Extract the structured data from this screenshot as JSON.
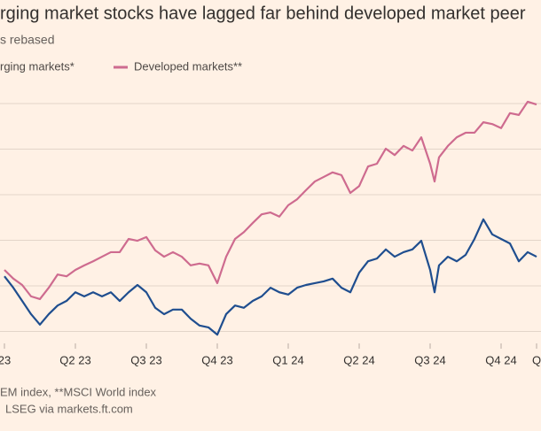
{
  "chart_data": {
    "type": "line",
    "title": "rging market stocks have lagged far behind developed market peer",
    "subtitle": "s rebased",
    "x": [
      0,
      0.125,
      0.25,
      0.375,
      0.5,
      0.625,
      0.75,
      0.875,
      1,
      1.125,
      1.25,
      1.375,
      1.5,
      1.625,
      1.75,
      1.875,
      2,
      2.125,
      2.25,
      2.375,
      2.5,
      2.625,
      2.75,
      2.875,
      3,
      3.125,
      3.25,
      3.375,
      3.5,
      3.625,
      3.75,
      3.875,
      4,
      4.125,
      4.25,
      4.375,
      4.5,
      4.625,
      4.75,
      4.875,
      5,
      5.125,
      5.25,
      5.375,
      5.5,
      5.625,
      5.75,
      5.875,
      6,
      6.0625,
      6.125,
      6.25,
      6.375,
      6.5,
      6.625,
      6.75,
      6.875,
      7,
      7.125,
      7.25,
      7.375,
      7.5
    ],
    "series": [
      {
        "name": "rging markets*",
        "color": "#1f4e8f",
        "values": [
          102.1,
          99.6,
          96.7,
          93.8,
          91.5,
          93.8,
          95.7,
          96.7,
          98.6,
          97.7,
          98.6,
          97.7,
          98.6,
          96.7,
          98.6,
          100.2,
          98.6,
          95.2,
          93.8,
          94.8,
          94.8,
          92.8,
          91.3,
          90.9,
          89.3,
          93.8,
          95.7,
          95.2,
          96.7,
          97.7,
          99.6,
          98.6,
          98.1,
          99.6,
          100.2,
          100.6,
          101.0,
          101.6,
          99.6,
          98.6,
          102.9,
          105.4,
          106.0,
          108.0,
          106.4,
          107.4,
          108.0,
          109.9,
          103.5,
          98.6,
          104.5,
          106.4,
          105.4,
          106.8,
          110.3,
          114.6,
          111.3,
          110.3,
          109.3,
          105.4,
          107.4,
          106.4
        ]
      },
      {
        "name": "Developed markets**",
        "color": "#ce6b8f",
        "values": [
          103.5,
          101.6,
          100.2,
          97.7,
          97.1,
          99.6,
          102.5,
          102.1,
          103.5,
          104.5,
          105.4,
          106.4,
          107.4,
          107.4,
          110.3,
          109.9,
          110.7,
          107.8,
          106.4,
          107.4,
          106.4,
          104.5,
          104.9,
          104.5,
          100.6,
          106.4,
          110.3,
          111.8,
          113.8,
          115.7,
          116.1,
          115.2,
          117.7,
          119.0,
          121.0,
          122.9,
          123.9,
          124.9,
          124.3,
          120.4,
          121.9,
          126.2,
          126.8,
          130.1,
          128.7,
          130.7,
          129.7,
          132.6,
          126.8,
          122.9,
          128.2,
          130.7,
          132.6,
          133.6,
          133.6,
          135.9,
          135.5,
          134.6,
          137.9,
          137.5,
          140.4,
          139.8
        ]
      }
    ],
    "xlim": [
      -0.0625,
      7.5625
    ],
    "xticks": [
      {
        "value": 0,
        "label": "23"
      },
      {
        "value": 1,
        "label": "Q2 23"
      },
      {
        "value": 2,
        "label": "Q3 23"
      },
      {
        "value": 3,
        "label": "Q4 23"
      },
      {
        "value": 4,
        "label": "Q1 24"
      },
      {
        "value": 5,
        "label": "Q2 24"
      },
      {
        "value": 6,
        "label": "Q3 24"
      },
      {
        "value": 7,
        "label": "Q4 24"
      },
      {
        "value": 7.5,
        "label": "Q"
      }
    ],
    "ylim": [
      87,
      143.3
    ],
    "yticks": [
      90,
      100,
      110,
      120,
      130,
      140
    ],
    "grid": true,
    "notes": [
      "EM index, **MSCI World index",
      "LSEG via markets.ft.com"
    ]
  }
}
